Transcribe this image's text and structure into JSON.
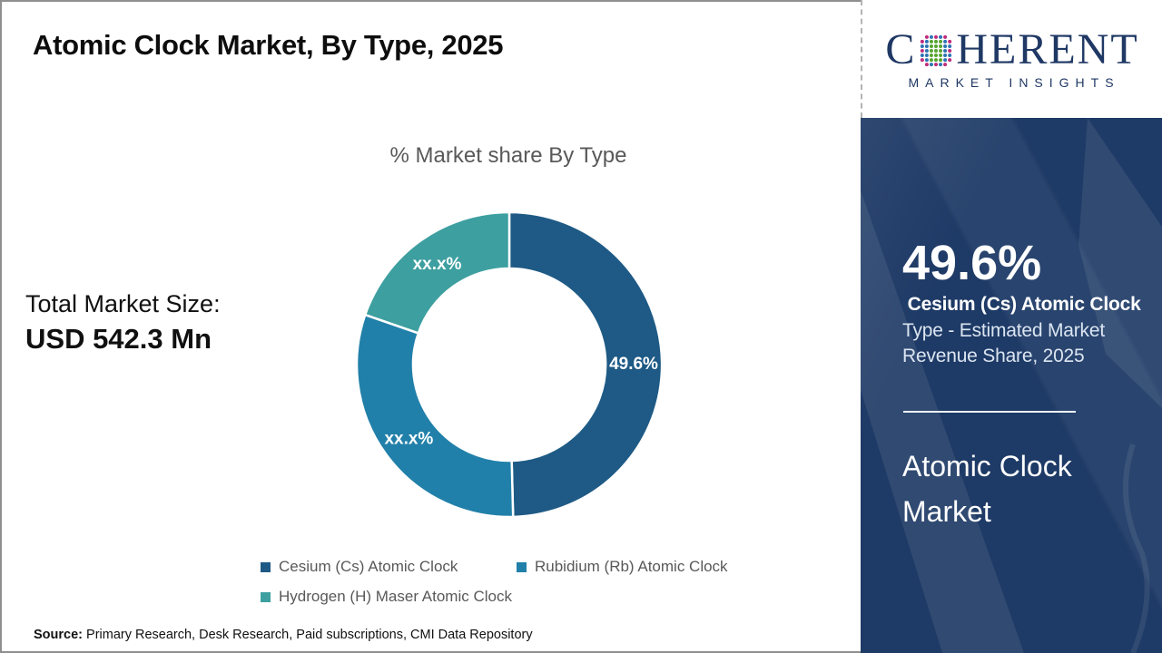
{
  "page": {
    "title": "Atomic Clock Market, By Type, 2025"
  },
  "logo": {
    "brand_first_letter": "C",
    "brand_rest": "HERENT",
    "tagline": "MARKET INSIGHTS",
    "navy": "#1F3864",
    "globe_colors": {
      "green": "#56A531",
      "blue": "#2E74B5",
      "pink": "#C02C7C"
    }
  },
  "total_market": {
    "label": "Total Market Size:",
    "value": "USD 542.3 Mn"
  },
  "chart_data": {
    "type": "pie",
    "subtype": "donut",
    "title": "% Market share By Type",
    "legend_position": "bottom",
    "slices": [
      {
        "name": "Cesium (Cs) Atomic Clock",
        "display_label": "49.6%",
        "value_pct": 49.6,
        "estimated": false,
        "color": "#1E5A85"
      },
      {
        "name": "Rubidium (Rb) Atomic Clock",
        "display_label": "xx.x%",
        "value_pct": 30.7,
        "estimated": true,
        "color": "#2180A9"
      },
      {
        "name": "Hydrogen (H) Maser Atomic Clock",
        "display_label": "xx.x%",
        "value_pct": 19.7,
        "estimated": true,
        "color": "#3D9FA0"
      }
    ]
  },
  "sidebar": {
    "bg_color": "#1E3A66",
    "stat_value": "49.6%",
    "stat_label_bold": " Cesium (Cs) Atomic Clock ",
    "stat_label_rest": "Type - Estimated Market Revenue Share, 2025",
    "market_name": "Atomic Clock Market"
  },
  "source": {
    "prefix": "Source:",
    "text": " Primary Research, Desk Research, Paid subscriptions, CMI Data Repository"
  }
}
